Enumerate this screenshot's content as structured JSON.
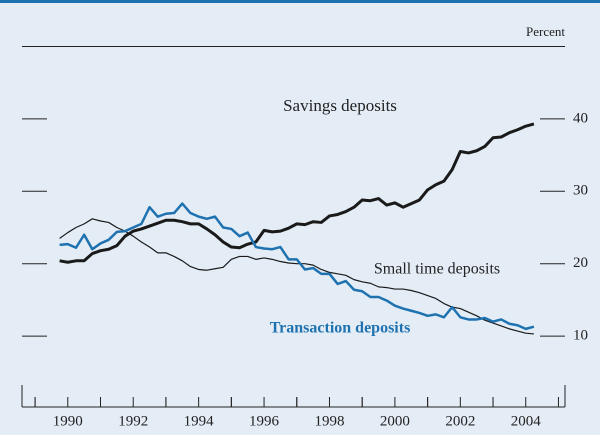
{
  "chart_data": {
    "type": "line",
    "y_axis_label": "Percent",
    "x": [
      1989.75,
      1990,
      1990.25,
      1990.5,
      1990.75,
      1991,
      1991.25,
      1991.5,
      1991.75,
      1992,
      1992.25,
      1992.5,
      1992.75,
      1993,
      1993.25,
      1993.5,
      1993.75,
      1994,
      1994.25,
      1994.5,
      1994.75,
      1995,
      1995.25,
      1995.5,
      1995.75,
      1996,
      1996.25,
      1996.5,
      1996.75,
      1997,
      1997.25,
      1997.5,
      1997.75,
      1998,
      1998.25,
      1998.5,
      1998.75,
      1999,
      1999.25,
      1999.5,
      1999.75,
      2000,
      2000.25,
      2000.5,
      2000.75,
      2001,
      2001.25,
      2001.5,
      2001.75,
      2002,
      2002.25,
      2002.5,
      2002.75,
      2003,
      2003.25,
      2003.5,
      2003.75,
      2004,
      2004.25
    ],
    "series": [
      {
        "name": "Savings deposits",
        "color": "#1a1a1a",
        "width": 3,
        "values": [
          20.4,
          20.2,
          20.4,
          20.4,
          21.4,
          21.8,
          22,
          22.5,
          23.8,
          24.5,
          24.8,
          25.2,
          25.6,
          26,
          26,
          25.8,
          25.5,
          25.5,
          24.8,
          24,
          23,
          22.3,
          22.2,
          22.7,
          23,
          24.6,
          24.4,
          24.5,
          24.9,
          25.5,
          25.4,
          25.8,
          25.7,
          26.6,
          26.8,
          27.2,
          27.8,
          28.8,
          28.7,
          29,
          28.1,
          28.4,
          27.8,
          28.3,
          28.8,
          30.2,
          30.9,
          31.4,
          33,
          35.5,
          35.3,
          35.6,
          36.2,
          37.4,
          37.5,
          38.1,
          38.5,
          39,
          39.3
        ]
      },
      {
        "name": "Small time deposits",
        "color": "#1a1a1a",
        "width": 1.2,
        "values": [
          23.5,
          24.3,
          25,
          25.5,
          26.2,
          25.9,
          25.7,
          25,
          24.5,
          23.8,
          23,
          22.3,
          21.5,
          21.5,
          21,
          20.4,
          19.6,
          19.2,
          19.1,
          19.3,
          19.5,
          20.6,
          21,
          21,
          20.6,
          20.8,
          20.6,
          20.3,
          20.1,
          20,
          20,
          19.8,
          19.2,
          18.8,
          18.6,
          18.4,
          17.8,
          17.5,
          17.3,
          16.8,
          16.7,
          16.5,
          16.5,
          16.3,
          16,
          15.6,
          15.2,
          14.5,
          14,
          13.8,
          13.3,
          12.8,
          12.2,
          11.8,
          11.4,
          11,
          10.7,
          10.4,
          10.3
        ]
      },
      {
        "name": "Transaction deposits",
        "color": "#1f72b0",
        "width": 2.5,
        "values": [
          22.6,
          22.7,
          22.2,
          24,
          22,
          22.8,
          23.3,
          24.4,
          24.5,
          25,
          25.5,
          27.8,
          26.5,
          26.9,
          27,
          28.3,
          27,
          26.5,
          26.2,
          26.5,
          25,
          24.8,
          23.8,
          24.3,
          22.3,
          22.1,
          22,
          22.3,
          20.6,
          20.6,
          19.2,
          19.4,
          18.6,
          18.6,
          17.2,
          17.6,
          16.4,
          16.2,
          15.4,
          15.4,
          14.9,
          14.2,
          13.8,
          13.5,
          13.2,
          12.8,
          13,
          12.6,
          14,
          12.6,
          12.3,
          12.3,
          12.5,
          12,
          12.3,
          11.7,
          11.5,
          11,
          11.3
        ]
      }
    ],
    "xlim": [
      1988.6,
      2005.2
    ],
    "xticks": [
      1990,
      1992,
      1994,
      1996,
      1998,
      2000,
      2002,
      2004
    ],
    "ylim": [
      0,
      50
    ],
    "yticks": [
      10,
      20,
      30,
      40
    ]
  }
}
